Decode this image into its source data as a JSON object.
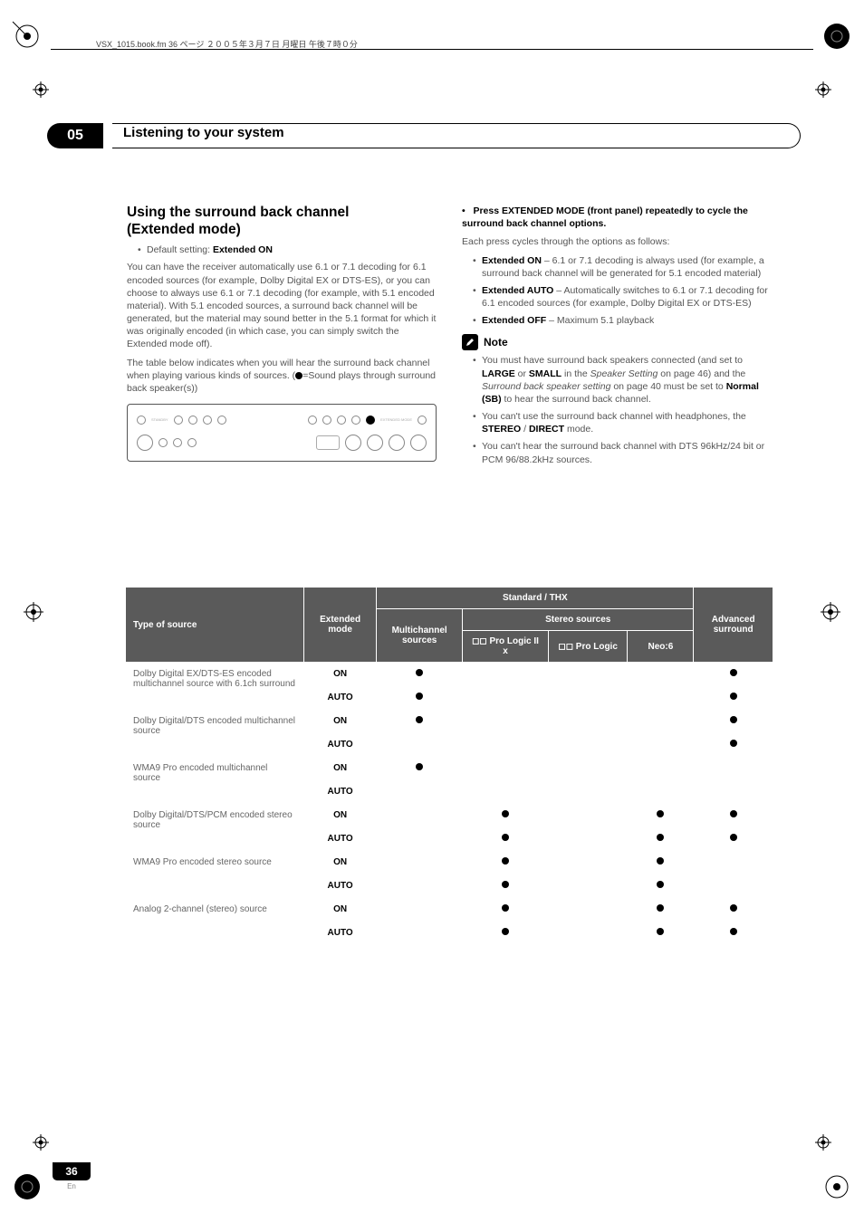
{
  "pageheader": "VSX_1015.book.fm 36 ページ ２００５年３月７日 月曜日 午後７時０分",
  "chapter": {
    "num": "05",
    "title": "Listening to your system"
  },
  "left": {
    "h2a": "Using the surround back channel",
    "h2b": "(Extended mode)",
    "default": "Default setting:",
    "default_val": "Extended ON",
    "p1": "You can have the receiver automatically use 6.1 or 7.1 decoding for 6.1 encoded sources (for example, Dolby Digital EX or DTS-ES), or you can choose to always use 6.1 or 7.1 decoding (for example, with 5.1 encoded material). With 5.1 encoded sources, a surround back channel will be generated, but the material may sound better in the 5.1 format for which it was originally encoded (in which case, you can simply switch the Extended mode off).",
    "p2a": "The table below indicates when you will hear the surround back channel when playing various kinds of sources. (",
    "p2b": "=Sound plays through surround back speaker(s))"
  },
  "right": {
    "step_b": "Press EXTENDED MODE (front panel) repeatedly to cycle the surround back channel options.",
    "step_txt": "Each press cycles through the options as follows:",
    "li1a": "Extended ON",
    "li1b": " – 6.1 or 7.1 decoding is always used (for example, a surround back channel will be generated for 5.1 encoded material)",
    "li2a": "Extended AUTO",
    "li2b": " – Automatically switches to 6.1 or 7.1 decoding for 6.1 encoded sources (for example, Dolby Digital EX or DTS-ES)",
    "li3a": "Extended OFF",
    "li3b": " – Maximum 5.1 playback",
    "note": "Note",
    "n1a": "You must have surround back speakers connected (and set to ",
    "n1b": "LARGE",
    "n1c": " or ",
    "n1d": "SMALL",
    "n1e": " in the ",
    "n1f": "Speaker Setting",
    "n1g": " on page 46) and the ",
    "n1h": "Surround back speaker setting",
    "n1i": " on page 40 must be set to ",
    "n1j": "Normal (SB)",
    "n1k": " to hear the surround back channel.",
    "n2a": "You can't use the surround back channel with headphones, the ",
    "n2b": "STEREO",
    "n2c": " / ",
    "n2d": "DIRECT",
    "n2e": " mode.",
    "n3": "You can't hear the surround back channel with DTS 96kHz/24 bit or PCM 96/88.2kHz sources."
  },
  "table": {
    "h_type": "Type of source",
    "h_ext": "Extended mode",
    "h_std": "Standard / THX",
    "h_multi": "Multichannel sources",
    "h_stereo": "Stereo sources",
    "h_pl2x": "◻◻ Pro Logic II x",
    "h_pl": "◻◻ Pro Logic",
    "h_neo": "Neo:6",
    "h_adv": "Advanced surround",
    "rows": [
      {
        "src": "Dolby Digital EX/DTS-ES encoded multichannel source with 6.1ch surround",
        "modes": [
          "ON",
          "AUTO"
        ],
        "dots": [
          [
            1,
            0,
            0,
            0,
            1
          ],
          [
            1,
            0,
            0,
            0,
            1
          ]
        ]
      },
      {
        "src": "Dolby Digital/DTS encoded multichannel source",
        "modes": [
          "ON",
          "AUTO"
        ],
        "dots": [
          [
            1,
            0,
            0,
            0,
            1
          ],
          [
            0,
            0,
            0,
            0,
            1
          ]
        ]
      },
      {
        "src": "WMA9 Pro encoded multichannel source",
        "modes": [
          "ON",
          "AUTO"
        ],
        "dots": [
          [
            1,
            0,
            0,
            0,
            0
          ],
          [
            0,
            0,
            0,
            0,
            0
          ]
        ]
      },
      {
        "src": "Dolby Digital/DTS/PCM encoded stereo source",
        "modes": [
          "ON",
          "AUTO"
        ],
        "dots": [
          [
            0,
            1,
            0,
            1,
            1
          ],
          [
            0,
            1,
            0,
            1,
            1
          ]
        ]
      },
      {
        "src": "WMA9 Pro encoded stereo source",
        "modes": [
          "ON",
          "AUTO"
        ],
        "dots": [
          [
            0,
            1,
            0,
            1,
            0
          ],
          [
            0,
            1,
            0,
            1,
            0
          ]
        ]
      },
      {
        "src": "Analog 2-channel (stereo) source",
        "modes": [
          "ON",
          "AUTO"
        ],
        "dots": [
          [
            0,
            1,
            0,
            1,
            1
          ],
          [
            0,
            1,
            0,
            1,
            1
          ]
        ]
      }
    ]
  },
  "footer": {
    "page": "36",
    "lang": "En"
  }
}
